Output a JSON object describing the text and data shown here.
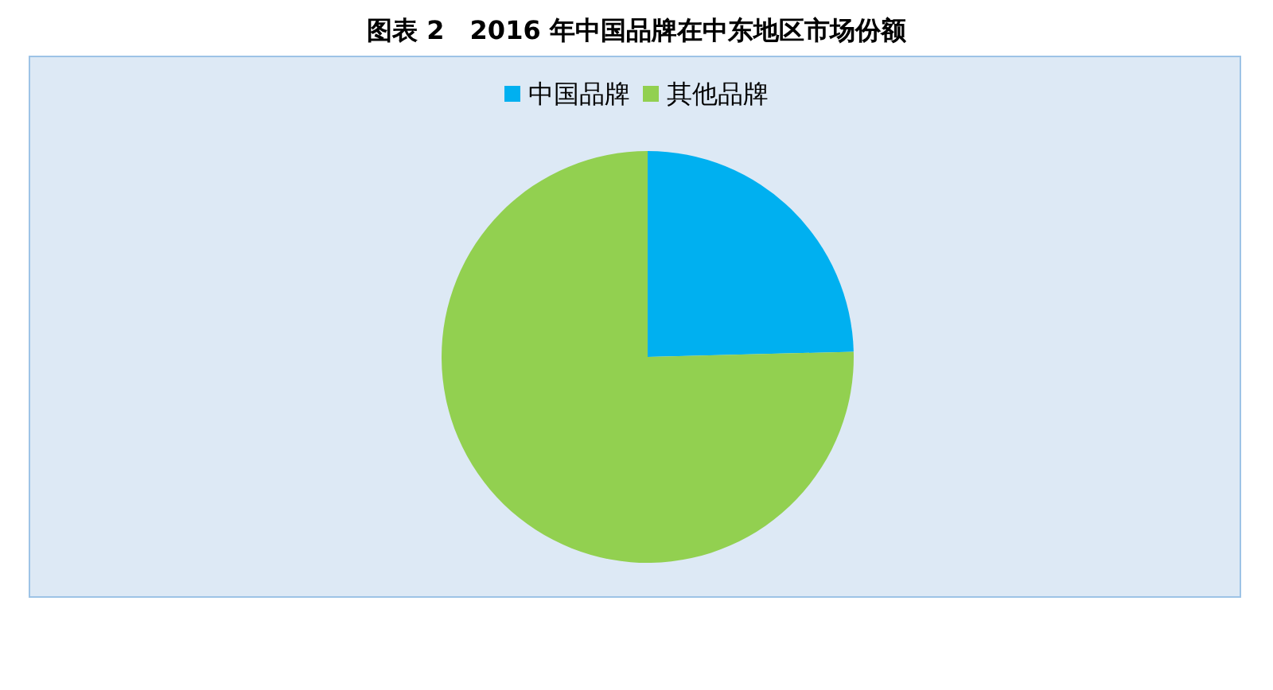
{
  "chart_data": {
    "type": "pie",
    "title": "图表 2　2016 年中国品牌在中东地区市场份额",
    "categories": [
      "中国品牌",
      "其他品牌"
    ],
    "values": [
      24.6,
      75.4
    ],
    "colors": [
      "#00b0f0",
      "#92d050"
    ],
    "legend": "top"
  }
}
